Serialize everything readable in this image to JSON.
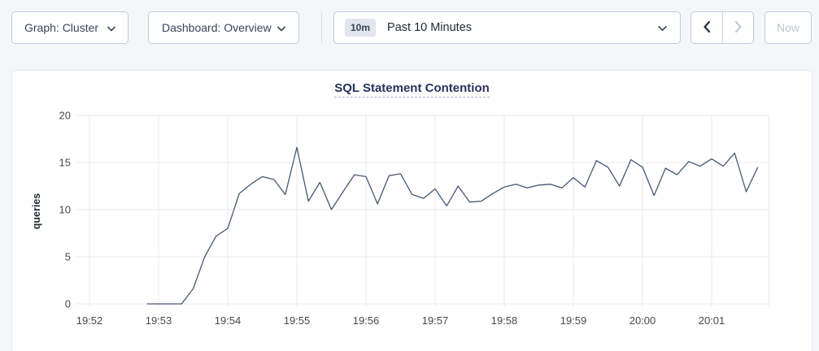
{
  "toolbar": {
    "graph_dropdown": {
      "label": "Graph: Cluster",
      "icon": "chevron-down-icon"
    },
    "dashboard_dropdown": {
      "label": "Dashboard: Overview",
      "icon": "chevron-down-icon"
    },
    "time_range": {
      "badge": "10m",
      "label": "Past 10 Minutes",
      "icon": "chevron-down-icon"
    },
    "prev_button": {
      "icon": "chevron-left-icon",
      "enabled": true
    },
    "next_button": {
      "icon": "chevron-right-icon",
      "enabled": false
    },
    "now_button": {
      "label": "Now",
      "enabled": false
    }
  },
  "colors": {
    "page_bg": "#f4f6fa",
    "card_bg": "#ffffff",
    "line": "#475872",
    "grid": "#e9ebf0",
    "title": "#26335d",
    "disabled": "#bfc5cf"
  },
  "chart_data": {
    "type": "line",
    "title": "SQL Statement Contention",
    "ylabel": "queries",
    "ylim": [
      0,
      20
    ],
    "yticks": [
      0,
      5,
      10,
      15,
      20
    ],
    "x_tick_labels": [
      "19:52",
      "19:53",
      "19:54",
      "19:55",
      "19:56",
      "19:57",
      "19:58",
      "19:59",
      "20:00",
      "20:01"
    ],
    "grid": true,
    "legend": "none",
    "line_color": "#475872",
    "series": [
      {
        "name": "queries",
        "start_time": "19:52:50",
        "start_offset_seconds": 50,
        "interval_seconds": 10,
        "values": [
          0,
          0,
          0,
          0,
          1.6,
          5,
          7.2,
          8,
          11.7,
          12.7,
          13.5,
          13.2,
          11.6,
          16.6,
          10.9,
          12.9,
          10,
          11.9,
          13.7,
          13.5,
          10.6,
          13.6,
          13.8,
          11.6,
          11.2,
          12.2,
          10.4,
          12.5,
          10.8,
          10.9,
          11.7,
          12.4,
          12.7,
          12.3,
          12.6,
          12.7,
          12.3,
          13.4,
          12.4,
          15.2,
          14.5,
          12.5,
          15.3,
          14.5,
          11.5,
          14.4,
          13.7,
          15.1,
          14.6,
          15.4,
          14.6,
          16,
          11.9,
          14.5
        ]
      }
    ]
  }
}
